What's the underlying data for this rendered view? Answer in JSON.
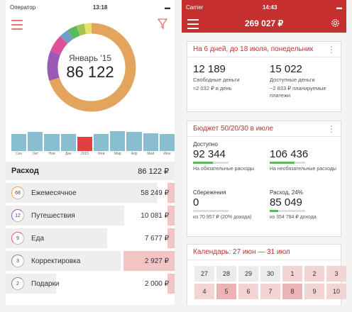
{
  "left": {
    "status": {
      "carrier": "Оператор",
      "time": "13:18"
    },
    "donut_month": "Январь '15",
    "donut_total": "86 122",
    "bars": [
      {
        "label": "Сен",
        "value": 0.7,
        "active": false
      },
      {
        "label": "Окт",
        "value": 0.78,
        "active": false
      },
      {
        "label": "Ноя",
        "value": 0.72,
        "active": false
      },
      {
        "label": "Дек",
        "value": 0.7,
        "active": false
      },
      {
        "label": "2015",
        "value": 0.6,
        "active": true
      },
      {
        "label": "Фев",
        "value": 0.72,
        "active": false
      },
      {
        "label": "Мар",
        "value": 0.82,
        "active": false
      },
      {
        "label": "Апр",
        "value": 0.8,
        "active": false
      },
      {
        "label": "Май",
        "value": 0.74,
        "active": false
      },
      {
        "label": "Июн",
        "value": 0.72,
        "active": false
      }
    ],
    "expense_header": {
      "title": "Расход",
      "amount": "86 122 ₽"
    },
    "rows": [
      {
        "badge": "68",
        "name": "Ежемесячное",
        "amount": "58 249 ₽",
        "fill": 0.9,
        "badge_color": "#f0a050"
      },
      {
        "badge": "12",
        "name": "Путешествия",
        "amount": "10 081 ₽",
        "fill": 0.7,
        "badge_color": "#9b59b6"
      },
      {
        "badge": "9",
        "name": "Еда",
        "amount": "7 677 ₽",
        "fill": 0.6,
        "badge_color": "#e0509a"
      },
      {
        "badge": "3",
        "name": "Корректировка",
        "amount": "2 927 ₽",
        "fill": 0.68,
        "badge_color": "#888888"
      },
      {
        "badge": "2",
        "name": "Подарки",
        "amount": "2 000 ₽",
        "fill": 0.3,
        "badge_color": "#888888"
      }
    ]
  },
  "right": {
    "status": {
      "carrier": "Carrier",
      "time": "14:43"
    },
    "title": "269 027 ₽",
    "card1": {
      "title": "На 6 дней, до 18 июля, понедельник",
      "free_value": "12 189",
      "free_label": "Свободные деньги",
      "free_sub": "≈2 032 ₽ в день",
      "avail_value": "15 022",
      "avail_label": "Доступные деньги",
      "avail_sub": "−2 833 ₽ планируемые платежи"
    },
    "card2": {
      "title": "Бюджет 50/20/30 в июле",
      "available_label": "Доступно",
      "mandatory_value": "92 344",
      "mandatory_sub": "На обязательные расходы",
      "mandatory_fill": 0.55,
      "optional_value": "106 436",
      "optional_sub": "На необязательные расходы",
      "optional_fill": 0.7,
      "savings_label": "Сбережения",
      "savings_value": "0",
      "savings_sub": "из 70 957 ₽ (20% дохода)",
      "savings_fill": 0,
      "expense_label": "Расход, 24%",
      "expense_value": "85 049",
      "expense_sub": "из 354 784 ₽ дохода",
      "expense_fill": 0.24
    },
    "card3": {
      "title": "Календарь: 27 июн — 31 июл",
      "days": [
        {
          "n": "27",
          "s": "past"
        },
        {
          "n": "28",
          "s": "past"
        },
        {
          "n": "29",
          "s": "past"
        },
        {
          "n": "30",
          "s": "past"
        },
        {
          "n": "1",
          "s": "cur"
        },
        {
          "n": "2",
          "s": "cur"
        },
        {
          "n": "3",
          "s": "cur"
        },
        {
          "n": "4",
          "s": "cur"
        },
        {
          "n": "5",
          "s": "hl"
        },
        {
          "n": "6",
          "s": "cur"
        },
        {
          "n": "7",
          "s": "cur"
        },
        {
          "n": "8",
          "s": "hl"
        },
        {
          "n": "9",
          "s": "cur"
        },
        {
          "n": "10",
          "s": "cur"
        }
      ]
    }
  }
}
